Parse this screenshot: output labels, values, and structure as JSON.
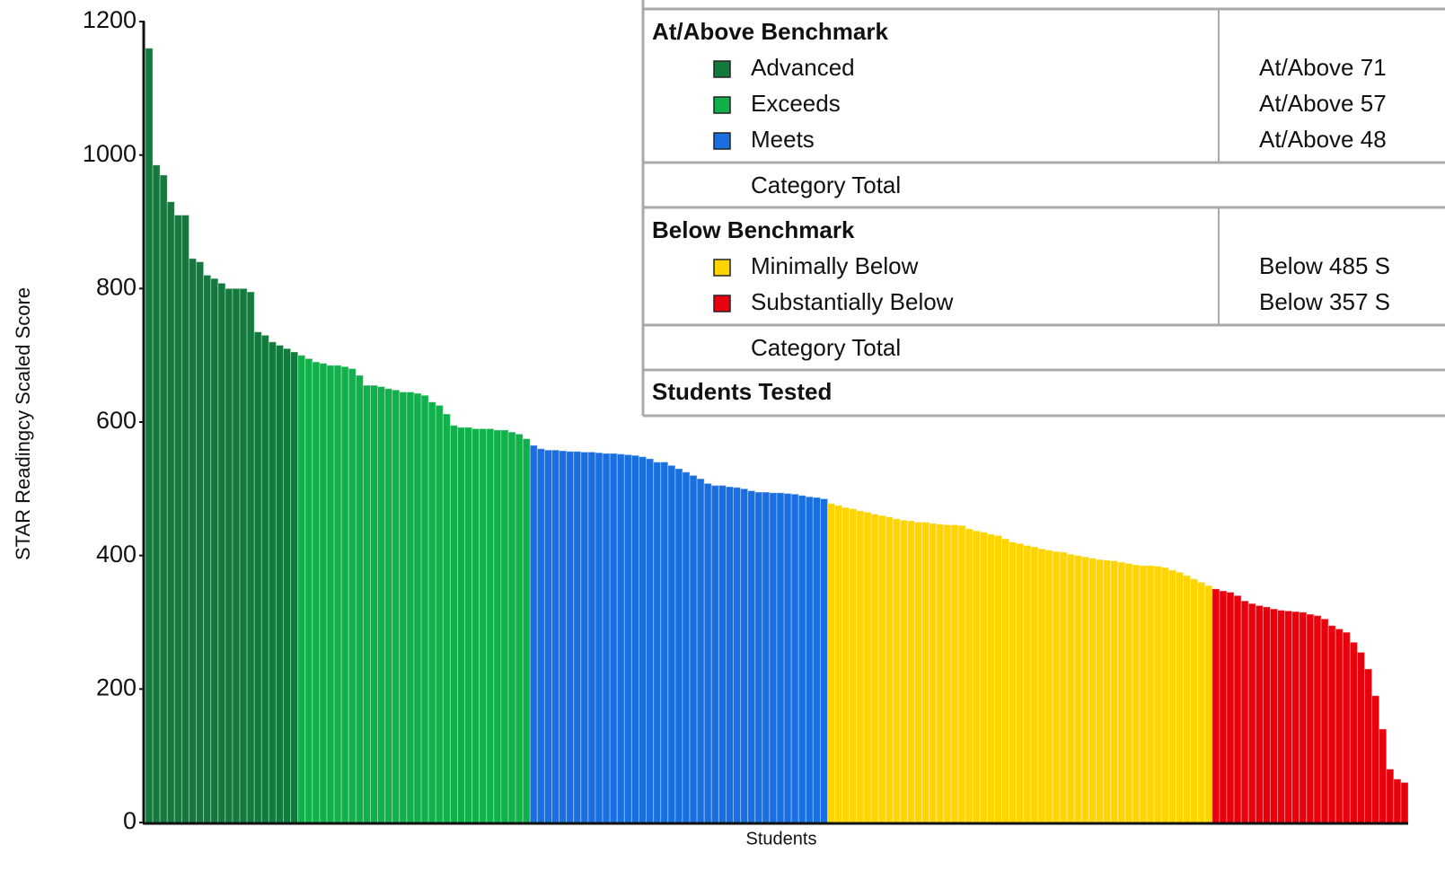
{
  "chart_data": {
    "type": "bar",
    "ylabel": "STAR Readingcy Scaled Score",
    "xlabel": "Students",
    "ylim": [
      0,
      1200
    ],
    "yticks": [
      0,
      200,
      400,
      600,
      800,
      1000,
      1200
    ],
    "series": [
      {
        "name": "Advanced",
        "color": "#137a3e",
        "values": [
          1160,
          985,
          970,
          930,
          910,
          910,
          845,
          840,
          820,
          815,
          808,
          800,
          800,
          800,
          795,
          735,
          730,
          720,
          715,
          710,
          705
        ]
      },
      {
        "name": "Exceeds",
        "color": "#10b04b",
        "values": [
          700,
          695,
          690,
          688,
          685,
          685,
          683,
          680,
          670,
          655,
          655,
          653,
          650,
          648,
          645,
          645,
          643,
          640,
          630,
          625,
          612,
          595,
          592,
          592,
          590,
          590,
          590,
          588,
          588,
          585,
          582,
          575
        ]
      },
      {
        "name": "Meets",
        "color": "#1a6fe0",
        "values": [
          565,
          560,
          558,
          558,
          557,
          556,
          556,
          555,
          555,
          554,
          553,
          553,
          552,
          551,
          550,
          548,
          545,
          540,
          540,
          535,
          530,
          525,
          520,
          515,
          508,
          505,
          505,
          503,
          502,
          500,
          497,
          495,
          495,
          494,
          494,
          493,
          492,
          490,
          488,
          487,
          485
        ]
      },
      {
        "name": "Minimally Below",
        "color": "#ffd400",
        "values": [
          478,
          475,
          472,
          470,
          467,
          465,
          462,
          460,
          458,
          455,
          453,
          452,
          450,
          450,
          448,
          447,
          446,
          446,
          445,
          440,
          437,
          435,
          432,
          430,
          425,
          420,
          418,
          415,
          413,
          410,
          408,
          406,
          405,
          402,
          400,
          398,
          396,
          394,
          393,
          392,
          390,
          388,
          386,
          385,
          385,
          384,
          382,
          378,
          375,
          370,
          365,
          360,
          355
        ]
      },
      {
        "name": "Substantially Below",
        "color": "#e8000d",
        "values": [
          350,
          347,
          345,
          340,
          332,
          328,
          325,
          323,
          320,
          318,
          317,
          316,
          315,
          312,
          310,
          305,
          295,
          290,
          285,
          270,
          255,
          230,
          190,
          140,
          80,
          65,
          60
        ]
      }
    ]
  },
  "table": {
    "sections": [
      {
        "title": "At/Above Benchmark",
        "criteria": [
          "At/Above 71",
          "At/Above 57",
          "At/Above 48"
        ],
        "total": "Category Total"
      },
      {
        "title": "Below Benchmark",
        "criteria": [
          "Below 485 S",
          "Below 357 S"
        ],
        "total": "Category Total"
      }
    ],
    "footer": "Students Tested"
  }
}
